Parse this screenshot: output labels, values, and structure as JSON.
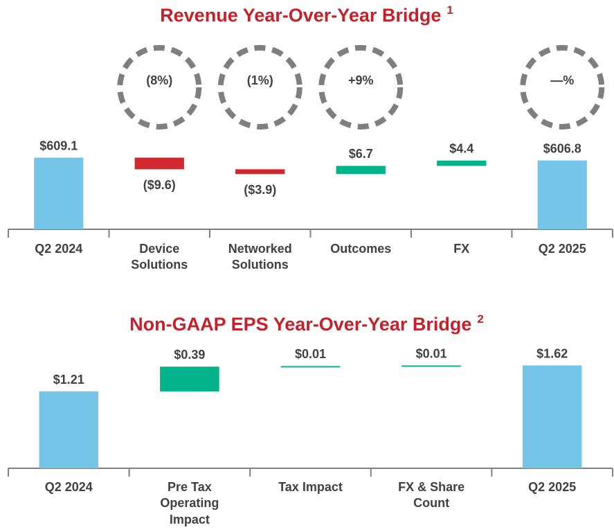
{
  "chart_data": [
    {
      "type": "waterfall",
      "title": "Revenue Year-Over-Year Bridge",
      "title_note": "1",
      "categories": [
        "Q2 2024",
        "Device Solutions",
        "Networked Solutions",
        "Outcomes",
        "FX",
        "Q2 2025"
      ],
      "measures": [
        "total",
        "relative",
        "relative",
        "relative",
        "relative",
        "total"
      ],
      "values": [
        609.1,
        -9.6,
        -3.9,
        6.7,
        4.4,
        606.8
      ],
      "value_labels": [
        "$609.1",
        "($9.6)",
        "($3.9)",
        "$6.7",
        "$4.4",
        "$606.8"
      ],
      "bubble_labels": [
        null,
        "(8%)",
        "(1%)",
        "+9%",
        null,
        "—%"
      ],
      "colors": {
        "total": "#74c5e8",
        "increase": "#00b388",
        "decrease": "#d0282e"
      },
      "ylim": [
        550,
        670
      ]
    },
    {
      "type": "waterfall",
      "title": "Non-GAAP EPS Year-Over-Year Bridge",
      "title_note": "2",
      "categories": [
        "Q2 2024",
        "Pre Tax Operating Impact",
        "Tax Impact",
        "FX & Share Count",
        "Q2 2025"
      ],
      "measures": [
        "total",
        "relative",
        "relative",
        "relative",
        "total"
      ],
      "values": [
        1.21,
        0.39,
        0.01,
        0.01,
        1.62
      ],
      "value_labels": [
        "$1.21",
        "$0.39",
        "$0.01",
        "$0.01",
        "$1.62"
      ],
      "colors": {
        "total": "#74c5e8",
        "increase": "#00b388",
        "decrease": "#d0282e"
      },
      "ylim": [
        0,
        1.8
      ]
    }
  ]
}
